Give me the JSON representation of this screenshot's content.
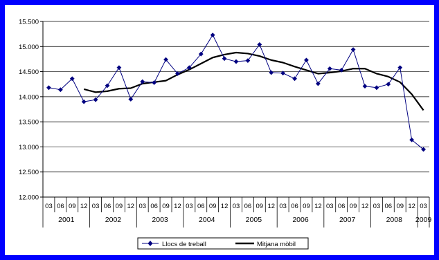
{
  "chart_data": {
    "type": "line",
    "title": "",
    "xlabel": "",
    "ylabel": "",
    "ylim": [
      12000,
      15500
    ],
    "ytick_labels": [
      "12.000",
      "12.500",
      "13.000",
      "13.500",
      "14.000",
      "14.500",
      "15.000",
      "15.500"
    ],
    "yticks": [
      12000,
      12500,
      13000,
      13500,
      14000,
      14500,
      15000,
      15500
    ],
    "grid": "horizontal",
    "legend_position": "bottom",
    "x": [
      "03",
      "06",
      "09",
      "12",
      "03",
      "06",
      "09",
      "12",
      "03",
      "06",
      "09",
      "12",
      "03",
      "06",
      "09",
      "12",
      "03",
      "06",
      "09",
      "12",
      "03",
      "06",
      "09",
      "12",
      "03",
      "06",
      "09",
      "12",
      "03",
      "06",
      "09",
      "12",
      "03"
    ],
    "year_labels": [
      "2001",
      "2002",
      "2003",
      "2004",
      "2005",
      "2006",
      "2007",
      "2008",
      "2009"
    ],
    "series": [
      {
        "name": "Llocs de treball",
        "color": "#000080",
        "marker": "diamond",
        "values": [
          14180,
          14140,
          14360,
          13900,
          13940,
          14220,
          14580,
          13950,
          14300,
          14280,
          14740,
          14460,
          14580,
          14850,
          15230,
          14760,
          14700,
          14720,
          15040,
          14480,
          14470,
          14360,
          14730,
          14260,
          14560,
          14530,
          14940,
          14210,
          14180,
          14250,
          14580,
          13140,
          12950
        ]
      },
      {
        "name": "Mitjana mòbil",
        "color": "#000000",
        "marker": "none",
        "values": [
          null,
          null,
          null,
          14150,
          14090,
          14110,
          14160,
          14170,
          14260,
          14290,
          14320,
          14440,
          14540,
          14660,
          14780,
          14840,
          14880,
          14860,
          14810,
          14730,
          14680,
          14600,
          14530,
          14460,
          14480,
          14510,
          14560,
          14560,
          14460,
          14400,
          14290,
          14050,
          13730
        ]
      }
    ]
  }
}
